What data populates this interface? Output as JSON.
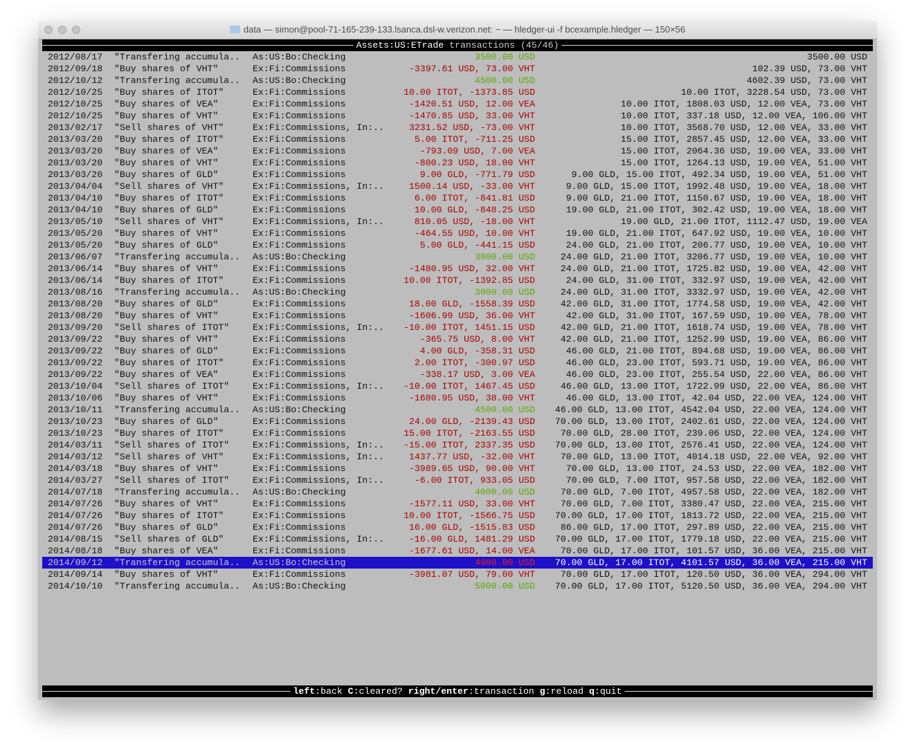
{
  "window": {
    "title": "data — simon@pool-71-165-239-133.lsanca.dsl-w.verizon.net: ~ — hledger-ui -f bcexample.hledger — 150×56"
  },
  "header": {
    "account": "Assets:US:ETrade",
    "suffix": " transactions (45/46)"
  },
  "colors": {
    "negative": "#a80000",
    "positive": "#5aa800",
    "selection": "#1c10c8",
    "background": "#bdbdbd"
  },
  "selected_index": 43,
  "rows": [
    {
      "date": "2012/08/17",
      "desc": "\"Transfering accumula..",
      "acct": "As:US:Bo:Checking",
      "amt": "3500.00 USD",
      "pos": true,
      "bal": "3500.00 USD"
    },
    {
      "date": "2012/09/18",
      "desc": "\"Buy shares of VHT\"",
      "acct": "Ex:Fi:Commissions",
      "amt": "-3397.61 USD, 73.00 VHT",
      "bal": "102.39 USD, 73.00 VHT"
    },
    {
      "date": "2012/10/12",
      "desc": "\"Transfering accumula..",
      "acct": "As:US:Bo:Checking",
      "amt": "4500.00 USD",
      "pos": true,
      "bal": "4602.39 USD, 73.00 VHT"
    },
    {
      "date": "2012/10/25",
      "desc": "\"Buy shares of ITOT\"",
      "acct": "Ex:Fi:Commissions",
      "amt": "10.00 ITOT, -1373.85 USD",
      "bal": "10.00 ITOT, 3228.54 USD, 73.00 VHT"
    },
    {
      "date": "2012/10/25",
      "desc": "\"Buy shares of VEA\"",
      "acct": "Ex:Fi:Commissions",
      "amt": "-1420.51 USD, 12.00 VEA",
      "bal": "10.00 ITOT, 1808.03 USD, 12.00 VEA, 73.00 VHT"
    },
    {
      "date": "2012/10/25",
      "desc": "\"Buy shares of VHT\"",
      "acct": "Ex:Fi:Commissions",
      "amt": "-1470.85 USD, 33.00 VHT",
      "bal": "10.00 ITOT, 337.18 USD, 12.00 VEA, 106.00 VHT"
    },
    {
      "date": "2013/02/17",
      "desc": "\"Sell shares of VHT\"",
      "acct": "Ex:Fi:Commissions, In:..",
      "amt": "3231.52 USD, -73.00 VHT",
      "bal": "10.00 ITOT, 3568.70 USD, 12.00 VEA, 33.00 VHT"
    },
    {
      "date": "2013/03/20",
      "desc": "\"Buy shares of ITOT\"",
      "acct": "Ex:Fi:Commissions",
      "amt": "5.00 ITOT, -711.25 USD",
      "bal": "15.00 ITOT, 2857.45 USD, 12.00 VEA, 33.00 VHT"
    },
    {
      "date": "2013/03/20",
      "desc": "\"Buy shares of VEA\"",
      "acct": "Ex:Fi:Commissions",
      "amt": "-793.09 USD, 7.00 VEA",
      "bal": "15.00 ITOT, 2064.36 USD, 19.00 VEA, 33.00 VHT"
    },
    {
      "date": "2013/03/20",
      "desc": "\"Buy shares of VHT\"",
      "acct": "Ex:Fi:Commissions",
      "amt": "-800.23 USD, 18.00 VHT",
      "bal": "15.00 ITOT, 1264.13 USD, 19.00 VEA, 51.00 VHT"
    },
    {
      "date": "2013/03/20",
      "desc": "\"Buy shares of GLD\"",
      "acct": "Ex:Fi:Commissions",
      "amt": "9.00 GLD, -771.79 USD",
      "bal": "9.00 GLD, 15.00 ITOT, 492.34 USD, 19.00 VEA, 51.00 VHT"
    },
    {
      "date": "2013/04/04",
      "desc": "\"Sell shares of VHT\"",
      "acct": "Ex:Fi:Commissions, In:..",
      "amt": "1500.14 USD, -33.00 VHT",
      "bal": "9.00 GLD, 15.00 ITOT, 1992.48 USD, 19.00 VEA, 18.00 VHT"
    },
    {
      "date": "2013/04/10",
      "desc": "\"Buy shares of ITOT\"",
      "acct": "Ex:Fi:Commissions",
      "amt": "6.00 ITOT, -841.81 USD",
      "bal": "9.00 GLD, 21.00 ITOT, 1150.67 USD, 19.00 VEA, 18.00 VHT"
    },
    {
      "date": "2013/04/10",
      "desc": "\"Buy shares of GLD\"",
      "acct": "Ex:Fi:Commissions",
      "amt": "10.00 GLD, -848.25 USD",
      "bal": "19.00 GLD, 21.00 ITOT, 302.42 USD, 19.00 VEA, 18.00 VHT"
    },
    {
      "date": "2013/05/10",
      "desc": "\"Sell shares of VHT\"",
      "acct": "Ex:Fi:Commissions, In:..",
      "amt": "810.05 USD, -18.00 VHT",
      "bal": "19.00 GLD, 21.00 ITOT, 1112.47 USD, 19.00 VEA"
    },
    {
      "date": "2013/05/20",
      "desc": "\"Buy shares of VHT\"",
      "acct": "Ex:Fi:Commissions",
      "amt": "-464.55 USD, 10.00 VHT",
      "bal": "19.00 GLD, 21.00 ITOT, 647.92 USD, 19.00 VEA, 10.00 VHT"
    },
    {
      "date": "2013/05/20",
      "desc": "\"Buy shares of GLD\"",
      "acct": "Ex:Fi:Commissions",
      "amt": "5.00 GLD, -441.15 USD",
      "bal": "24.00 GLD, 21.00 ITOT, 206.77 USD, 19.00 VEA, 10.00 VHT"
    },
    {
      "date": "2013/06/07",
      "desc": "\"Transfering accumula..",
      "acct": "As:US:Bo:Checking",
      "amt": "3000.00 USD",
      "pos": true,
      "bal": "24.00 GLD, 21.00 ITOT, 3206.77 USD, 19.00 VEA, 10.00 VHT"
    },
    {
      "date": "2013/06/14",
      "desc": "\"Buy shares of VHT\"",
      "acct": "Ex:Fi:Commissions",
      "amt": "-1480.95 USD, 32.00 VHT",
      "bal": "24.00 GLD, 21.00 ITOT, 1725.82 USD, 19.00 VEA, 42.00 VHT"
    },
    {
      "date": "2013/06/14",
      "desc": "\"Buy shares of ITOT\"",
      "acct": "Ex:Fi:Commissions",
      "amt": "10.00 ITOT, -1392.85 USD",
      "bal": "24.00 GLD, 31.00 ITOT, 332.97 USD, 19.00 VEA, 42.00 VHT"
    },
    {
      "date": "2013/08/16",
      "desc": "\"Transfering accumula..",
      "acct": "As:US:Bo:Checking",
      "amt": "3000.00 USD",
      "pos": true,
      "bal": "24.00 GLD, 31.00 ITOT, 3332.97 USD, 19.00 VEA, 42.00 VHT"
    },
    {
      "date": "2013/08/20",
      "desc": "\"Buy shares of GLD\"",
      "acct": "Ex:Fi:Commissions",
      "amt": "18.00 GLD, -1558.39 USD",
      "bal": "42.00 GLD, 31.00 ITOT, 1774.58 USD, 19.00 VEA, 42.00 VHT"
    },
    {
      "date": "2013/08/20",
      "desc": "\"Buy shares of VHT\"",
      "acct": "Ex:Fi:Commissions",
      "amt": "-1606.99 USD, 36.00 VHT",
      "bal": "42.00 GLD, 31.00 ITOT, 167.59 USD, 19.00 VEA, 78.00 VHT"
    },
    {
      "date": "2013/09/20",
      "desc": "\"Sell shares of ITOT\"",
      "acct": "Ex:Fi:Commissions, In:..",
      "amt": "-10.00 ITOT, 1451.15 USD",
      "bal": "42.00 GLD, 21.00 ITOT, 1618.74 USD, 19.00 VEA, 78.00 VHT"
    },
    {
      "date": "2013/09/22",
      "desc": "\"Buy shares of VHT\"",
      "acct": "Ex:Fi:Commissions",
      "amt": "-365.75 USD, 8.00 VHT",
      "bal": "42.00 GLD, 21.00 ITOT, 1252.99 USD, 19.00 VEA, 86.00 VHT"
    },
    {
      "date": "2013/09/22",
      "desc": "\"Buy shares of GLD\"",
      "acct": "Ex:Fi:Commissions",
      "amt": "4.00 GLD, -358.31 USD",
      "bal": "46.00 GLD, 21.00 ITOT, 894.68 USD, 19.00 VEA, 86.00 VHT"
    },
    {
      "date": "2013/09/22",
      "desc": "\"Buy shares of ITOT\"",
      "acct": "Ex:Fi:Commissions",
      "amt": "2.00 ITOT, -300.97 USD",
      "bal": "46.00 GLD, 23.00 ITOT, 593.71 USD, 19.00 VEA, 86.00 VHT"
    },
    {
      "date": "2013/09/22",
      "desc": "\"Buy shares of VEA\"",
      "acct": "Ex:Fi:Commissions",
      "amt": "-338.17 USD, 3.00 VEA",
      "bal": "46.00 GLD, 23.00 ITOT, 255.54 USD, 22.00 VEA, 86.00 VHT"
    },
    {
      "date": "2013/10/04",
      "desc": "\"Sell shares of ITOT\"",
      "acct": "Ex:Fi:Commissions, In:..",
      "amt": "-10.00 ITOT, 1467.45 USD",
      "bal": "46.00 GLD, 13.00 ITOT, 1722.99 USD, 22.00 VEA, 86.00 VHT"
    },
    {
      "date": "2013/10/06",
      "desc": "\"Buy shares of VHT\"",
      "acct": "Ex:Fi:Commissions",
      "amt": "-1680.95 USD, 38.00 VHT",
      "bal": "46.00 GLD, 13.00 ITOT, 42.04 USD, 22.00 VEA, 124.00 VHT"
    },
    {
      "date": "2013/10/11",
      "desc": "\"Transfering accumula..",
      "acct": "As:US:Bo:Checking",
      "amt": "4500.00 USD",
      "pos": true,
      "bal": "46.00 GLD, 13.00 ITOT, 4542.04 USD, 22.00 VEA, 124.00 VHT"
    },
    {
      "date": "2013/10/23",
      "desc": "\"Buy shares of GLD\"",
      "acct": "Ex:Fi:Commissions",
      "amt": "24.00 GLD, -2139.43 USD",
      "bal": "70.00 GLD, 13.00 ITOT, 2402.61 USD, 22.00 VEA, 124.00 VHT"
    },
    {
      "date": "2013/10/23",
      "desc": "\"Buy shares of ITOT\"",
      "acct": "Ex:Fi:Commissions",
      "amt": "15.00 ITOT, -2163.55 USD",
      "bal": "70.00 GLD, 28.00 ITOT, 239.06 USD, 22.00 VEA, 124.00 VHT"
    },
    {
      "date": "2014/03/11",
      "desc": "\"Sell shares of ITOT\"",
      "acct": "Ex:Fi:Commissions, In:..",
      "amt": "-15.00 ITOT, 2337.35 USD",
      "bal": "70.00 GLD, 13.00 ITOT, 2576.41 USD, 22.00 VEA, 124.00 VHT"
    },
    {
      "date": "2014/03/12",
      "desc": "\"Sell shares of VHT\"",
      "acct": "Ex:Fi:Commissions, In:..",
      "amt": "1437.77 USD, -32.00 VHT",
      "bal": "70.00 GLD, 13.00 ITOT, 4014.18 USD, 22.00 VEA, 92.00 VHT"
    },
    {
      "date": "2014/03/18",
      "desc": "\"Buy shares of VHT\"",
      "acct": "Ex:Fi:Commissions",
      "amt": "-3989.65 USD, 90.00 VHT",
      "bal": "70.00 GLD, 13.00 ITOT, 24.53 USD, 22.00 VEA, 182.00 VHT"
    },
    {
      "date": "2014/03/27",
      "desc": "\"Sell shares of ITOT\"",
      "acct": "Ex:Fi:Commissions, In:..",
      "amt": "-6.00 ITOT, 933.05 USD",
      "bal": "70.00 GLD, 7.00 ITOT, 957.58 USD, 22.00 VEA, 182.00 VHT"
    },
    {
      "date": "2014/07/18",
      "desc": "\"Transfering accumula..",
      "acct": "As:US:Bo:Checking",
      "amt": "4000.00 USD",
      "pos": true,
      "bal": "70.00 GLD, 7.00 ITOT, 4957.58 USD, 22.00 VEA, 182.00 VHT"
    },
    {
      "date": "2014/07/26",
      "desc": "\"Buy shares of VHT\"",
      "acct": "Ex:Fi:Commissions",
      "amt": "-1577.11 USD, 33.00 VHT",
      "bal": "70.00 GLD, 7.00 ITOT, 3380.47 USD, 22.00 VEA, 215.00 VHT"
    },
    {
      "date": "2014/07/26",
      "desc": "\"Buy shares of ITOT\"",
      "acct": "Ex:Fi:Commissions",
      "amt": "10.00 ITOT, -1566.75 USD",
      "bal": "70.00 GLD, 17.00 ITOT, 1813.72 USD, 22.00 VEA, 215.00 VHT"
    },
    {
      "date": "2014/07/26",
      "desc": "\"Buy shares of GLD\"",
      "acct": "Ex:Fi:Commissions",
      "amt": "16.00 GLD, -1515.83 USD",
      "bal": "86.00 GLD, 17.00 ITOT, 297.89 USD, 22.00 VEA, 215.00 VHT"
    },
    {
      "date": "2014/08/15",
      "desc": "\"Sell shares of GLD\"",
      "acct": "Ex:Fi:Commissions, In:..",
      "amt": "-16.00 GLD, 1481.29 USD",
      "bal": "70.00 GLD, 17.00 ITOT, 1779.18 USD, 22.00 VEA, 215.00 VHT"
    },
    {
      "date": "2014/08/18",
      "desc": "\"Buy shares of VEA\"",
      "acct": "Ex:Fi:Commissions",
      "amt": "-1677.61 USD, 14.00 VEA",
      "bal": "70.00 GLD, 17.00 ITOT, 101.57 USD, 36.00 VEA, 215.00 VHT"
    },
    {
      "date": "2014/09/12",
      "desc": "\"Transfering accumula..",
      "acct": "As:US:Bo:Checking",
      "amt": "4000.00 USD",
      "pos": true,
      "bal": "70.00 GLD, 17.00 ITOT, 4101.57 USD, 36.00 VEA, 215.00 VHT"
    },
    {
      "date": "2014/09/14",
      "desc": "\"Buy shares of VHT\"",
      "acct": "Ex:Fi:Commissions",
      "amt": "-3981.07 USD, 79.00 VHT",
      "bal": "70.00 GLD, 17.00 ITOT, 120.50 USD, 36.00 VEA, 294.00 VHT"
    },
    {
      "date": "2014/10/10",
      "desc": "\"Transfering accumula..",
      "acct": "As:US:Bo:Checking",
      "amt": "5000.00 USD",
      "pos": true,
      "bal": "70.00 GLD, 17.00 ITOT, 5120.50 USD, 36.00 VEA, 294.00 VHT"
    }
  ],
  "footer": {
    "keys": [
      {
        "key": "left",
        "action": "back"
      },
      {
        "key": "C",
        "action": "cleared?"
      },
      {
        "key": "right/enter",
        "action": "transaction"
      },
      {
        "key": "g",
        "action": "reload"
      },
      {
        "key": "q",
        "action": "quit"
      }
    ]
  }
}
